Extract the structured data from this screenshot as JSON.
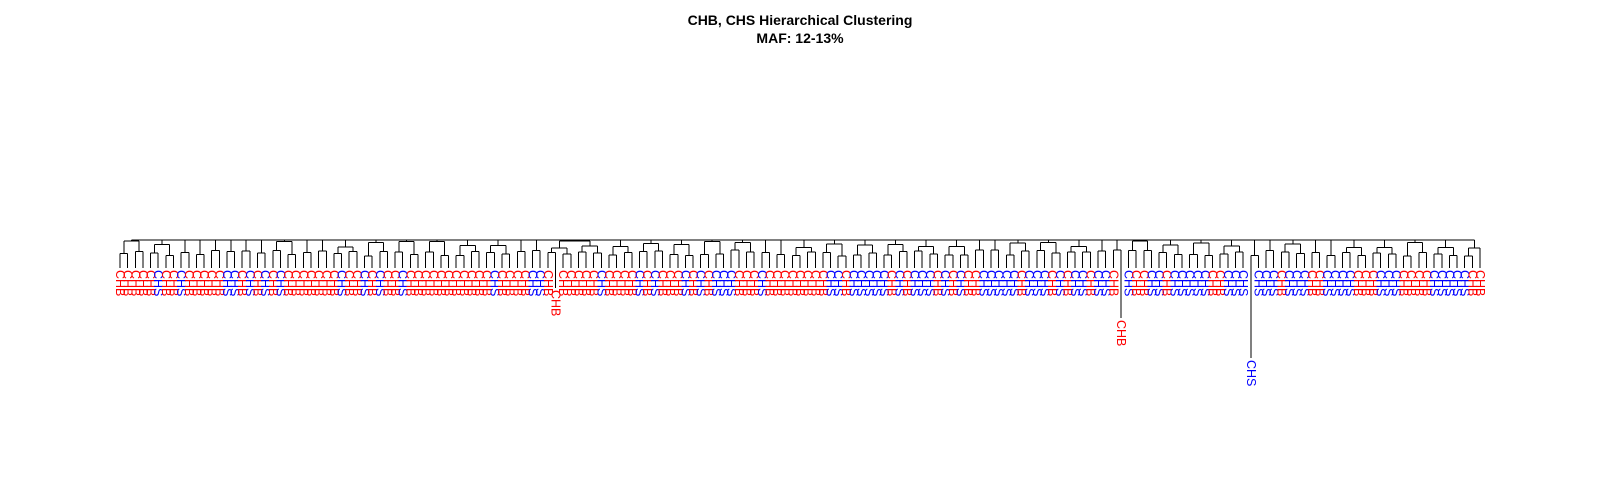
{
  "chart_data": {
    "type": "dendrogram",
    "title": "CHB, CHS Hierarchical Clustering",
    "subtitle": "MAF: 12-13%",
    "colors": {
      "CHB": "#ff0000",
      "CHS": "#0000ff"
    },
    "legend": "none",
    "leaves": [
      "CHB",
      "CHB",
      "CHB",
      "CHB",
      "CHB",
      "CHS",
      "CHB",
      "CHB",
      "CHS",
      "CHB",
      "CHB",
      "CHB",
      "CHB",
      "CHB",
      "CHS",
      "CHS",
      "CHB",
      "CHS",
      "CHB",
      "CHS",
      "CHB",
      "CHS",
      "CHB",
      "CHB",
      "CHB",
      "CHB",
      "CHB",
      "CHB",
      "CHB",
      "CHS",
      "CHB",
      "CHB",
      "CHS",
      "CHB",
      "CHS",
      "CHB",
      "CHB",
      "CHS",
      "CHB",
      "CHB",
      "CHB",
      "CHB",
      "CHB",
      "CHB",
      "CHB",
      "CHB",
      "CHB",
      "CHB",
      "CHB",
      "CHS",
      "CHB",
      "CHB",
      "CHB",
      "CHB",
      "CHS",
      "CHS",
      "CHB",
      "CHB",
      "CHB",
      "CHB",
      "CHB",
      "CHB",
      "CHB",
      "CHS",
      "CHB",
      "CHB",
      "CHB",
      "CHB",
      "CHS",
      "CHB",
      "CHS",
      "CHB",
      "CHB",
      "CHB",
      "CHS",
      "CHB",
      "CHS",
      "CHB",
      "CHS",
      "CHS",
      "CHS",
      "CHB",
      "CHB",
      "CHB",
      "CHS",
      "CHB",
      "CHB",
      "CHB",
      "CHB",
      "CHB",
      "CHB",
      "CHB",
      "CHB",
      "CHS",
      "CHS",
      "CHB",
      "CHS",
      "CHS",
      "CHS",
      "CHS",
      "CHS",
      "CHB",
      "CHS",
      "CHB",
      "CHS",
      "CHS",
      "CHS",
      "CHB",
      "CHS",
      "CHB",
      "CHS",
      "CHB",
      "CHB",
      "CHS",
      "CHS",
      "CHS",
      "CHS",
      "CHS",
      "CHB",
      "CHS",
      "CHS",
      "CHS",
      "CHB",
      "CHS",
      "CHB",
      "CHS",
      "CHS",
      "CHB",
      "CHS",
      "CHS",
      "CHB",
      "CHB",
      "CHS",
      "CHB",
      "CHB",
      "CHS",
      "CHS",
      "CHB",
      "CHS",
      "CHS",
      "CHS",
      "CHS",
      "CHS",
      "CHB",
      "CHB",
      "CHS",
      "CHS",
      "CHS",
      "CHS",
      "CHS",
      "CHS",
      "CHS",
      "CHB",
      "CHS",
      "CHS",
      "CHS",
      "CHB",
      "CHB",
      "CHS",
      "CHS",
      "CHS",
      "CHS",
      "CHB",
      "CHB",
      "CHB",
      "CHS",
      "CHS",
      "CHS",
      "CHB",
      "CHB",
      "CHB",
      "CHB",
      "CHS",
      "CHS",
      "CHS",
      "CHS",
      "CHS",
      "CHB",
      "CHB"
    ]
  }
}
